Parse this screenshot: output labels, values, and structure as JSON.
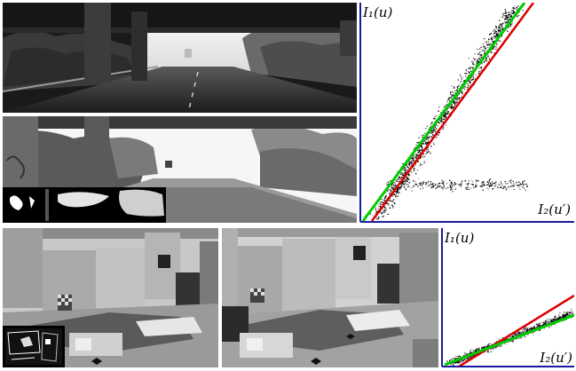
{
  "figure": {
    "plot_top": {
      "y_label": "I₁(u)",
      "x_label": "I₂(u′)"
    },
    "plot_bottom": {
      "y_label": "I₁(u)",
      "x_label": "I₂(u′)"
    }
  },
  "chart_data": [
    {
      "type": "scatter",
      "ylabel": "I₁(u)",
      "xlabel": "I₂(u′)",
      "series": [
        {
          "color": "#00cc00",
          "style": "line"
        },
        {
          "color": "#dd0000",
          "style": "line"
        }
      ],
      "grid": false
    },
    {
      "type": "scatter",
      "ylabel": "I₁(u)",
      "xlabel": "I₂(u′)",
      "series": [
        {
          "color": "#00cc00",
          "style": "line"
        },
        {
          "color": "#dd0000",
          "style": "line"
        }
      ],
      "grid": false
    }
  ],
  "colors": {
    "fit_green": "#00cc00",
    "fit_red": "#dd0000",
    "axis_blue": "#1a1aa0"
  }
}
